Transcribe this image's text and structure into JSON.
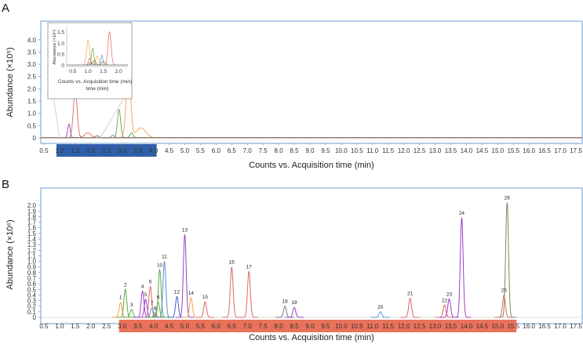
{
  "chart_data": [
    {
      "panel": "A",
      "type": "line",
      "xlabel": "Counts vs. Acquisition time (min)",
      "ylabel": "Abundance (×10⁵)",
      "xlim": [
        0.4,
        17.7
      ],
      "ylim": [
        -0.1,
        4.6
      ],
      "x_ticks": [
        "0.5",
        "1.0",
        "1.5",
        "2.0",
        "2.5",
        "3.0",
        "3.5",
        "4.0",
        "4.5",
        "5.0",
        "5.5",
        "6.0",
        "6.5",
        "7.0",
        "7.5",
        "8.0",
        "8.5",
        "9.0",
        "9.5",
        "10.0",
        "10.5",
        "11.0",
        "11.5",
        "12.0",
        "12.5",
        "13.0",
        "13.5",
        "14.0",
        "14.5",
        "15.0",
        "15.5",
        "16.0",
        "16.5",
        "17.0",
        "17.5"
      ],
      "y_ticks": [
        "0",
        "0.5",
        "1.0",
        "1.5",
        "2.0",
        "2.5",
        "3.0",
        "3.5",
        "4.0"
      ],
      "highlight_range": [
        0.9,
        4.1
      ],
      "highlight_color": "#2f5fa8",
      "series": [
        {
          "color": "#9b3fc9",
          "peaks": [
            [
              1.3,
              0.55,
              0.04
            ]
          ]
        },
        {
          "color": "#e06666",
          "peaks": [
            [
              1.5,
              1.95,
              0.06
            ],
            [
              1.9,
              0.2,
              0.1
            ]
          ]
        },
        {
          "color": "#5aa845",
          "peaks": [
            [
              2.9,
              1.15,
              0.05
            ],
            [
              3.3,
              0.2,
              0.05
            ]
          ]
        },
        {
          "color": "#f2a24a",
          "peaks": [
            [
              3.2,
              2.8,
              0.07
            ],
            [
              3.6,
              0.4,
              0.15
            ]
          ]
        },
        {
          "color": "#5b8fd6",
          "peaks": [
            [
              2.7,
              0.1,
              0.05
            ]
          ]
        },
        {
          "color": "#8c6d4f",
          "peaks": [
            [
              2.2,
              0.08,
              0.05
            ]
          ]
        }
      ],
      "inset": {
        "xlabel": "Counts vs. Acquisition time (min)",
        "ylabel": "Abundance (×10⁵)",
        "x_ticks": [
          "0.5",
          "1.0",
          "1.5",
          "2.0"
        ],
        "y_ticks": [
          "0",
          "0.5",
          "1.0",
          "1.5"
        ],
        "xlim": [
          0.3,
          2.3
        ],
        "ylim": [
          -0.05,
          1.75
        ],
        "series": [
          {
            "color": "#f2a24a",
            "peaks": [
              [
                1.0,
                1.1,
                0.05
              ],
              [
                1.3,
                0.4,
                0.05
              ]
            ]
          },
          {
            "color": "#e06666",
            "peaks": [
              [
                1.7,
                1.5,
                0.05
              ],
              [
                1.05,
                0.3,
                0.04
              ]
            ]
          },
          {
            "color": "#5b8fd6",
            "peaks": [
              [
                1.45,
                0.45,
                0.03
              ]
            ]
          },
          {
            "color": "#5aa845",
            "peaks": [
              [
                1.15,
                0.75,
                0.04
              ]
            ]
          },
          {
            "color": "#8c6d4f",
            "peaks": [
              [
                1.2,
                0.2,
                0.06
              ],
              [
                1.5,
                0.15,
                0.06
              ]
            ]
          },
          {
            "color": "#888888",
            "peaks": [
              [
                1.1,
                0.1,
                0.08
              ]
            ]
          }
        ]
      }
    },
    {
      "panel": "B",
      "type": "line",
      "xlabel": "Counts vs. Acquisition time (min)",
      "ylabel": "Abundance (×10⁶)",
      "xlim": [
        0.4,
        17.7
      ],
      "ylim": [
        -0.02,
        2.17
      ],
      "x_ticks": [
        "0.5",
        "1.0",
        "1.5",
        "2.0",
        "2.5",
        "3.0",
        "3.5",
        "4.0",
        "4.5",
        "5.0",
        "5.5",
        "6.0",
        "6.5",
        "7.0",
        "7.5",
        "8.0",
        "8.5",
        "9.0",
        "9.5",
        "10.0",
        "10.5",
        "11.0",
        "11.5",
        "12.0",
        "12.5",
        "13.0",
        "13.5",
        "14.0",
        "14.5",
        "15.0",
        "15.5",
        "16.0",
        "16.5",
        "17.0",
        "17.5"
      ],
      "y_ticks": [
        "0",
        "0.1",
        "0.2",
        "0.3",
        "0.4",
        "0.5",
        "0.6",
        "0.7",
        "0.8",
        "0.9",
        "1.0",
        "1.1",
        "1.2",
        "1.3",
        "1.4",
        "1.5",
        "1.6",
        "1.7",
        "1.8",
        "1.9",
        "2.0"
      ],
      "highlight_range": [
        2.9,
        15.6
      ],
      "highlight_color": "#e8725a",
      "peaks": [
        {
          "label": "1",
          "x": 2.95,
          "y": 0.27,
          "color": "#f2a24a"
        },
        {
          "label": "2",
          "x": 3.1,
          "y": 0.5,
          "color": "#5aa845"
        },
        {
          "label": "3",
          "x": 3.3,
          "y": 0.14,
          "color": "#5aa845"
        },
        {
          "label": "4",
          "x": 3.65,
          "y": 0.47,
          "color": "#9b3fc9"
        },
        {
          "label": "5",
          "x": 3.75,
          "y": 0.32,
          "color": "#9b3fc9"
        },
        {
          "label": "6",
          "x": 3.9,
          "y": 0.55,
          "color": "#e06666"
        },
        {
          "label": "7",
          "x": 3.95,
          "y": 0.17,
          "color": "#5b8fd6"
        },
        {
          "label": "8",
          "x": 4.05,
          "y": 0.08,
          "color": "#8c6d4f"
        },
        {
          "label": "9",
          "x": 4.15,
          "y": 0.27,
          "color": "#5aa845"
        },
        {
          "label": "10",
          "x": 4.2,
          "y": 0.85,
          "color": "#5aa845"
        },
        {
          "label": "11",
          "x": 4.35,
          "y": 1.0,
          "color": "#5b8fd6"
        },
        {
          "label": "12",
          "x": 4.75,
          "y": 0.37,
          "color": "#3f5fc9"
        },
        {
          "label": "13",
          "x": 5.0,
          "y": 1.48,
          "color": "#9b3fc9"
        },
        {
          "label": "14",
          "x": 5.2,
          "y": 0.35,
          "color": "#f2a24a"
        },
        {
          "label": "15",
          "x": 5.65,
          "y": 0.28,
          "color": "#e06666"
        },
        {
          "label": "16",
          "x": 6.5,
          "y": 0.9,
          "color": "#e06666"
        },
        {
          "label": "17",
          "x": 7.05,
          "y": 0.82,
          "color": "#e06666"
        },
        {
          "label": "18",
          "x": 8.2,
          "y": 0.2,
          "color": "#777777"
        },
        {
          "label": "19",
          "x": 8.5,
          "y": 0.18,
          "color": "#9b3fc9"
        },
        {
          "label": "20",
          "x": 11.25,
          "y": 0.1,
          "color": "#5b8fd6"
        },
        {
          "label": "21",
          "x": 12.2,
          "y": 0.34,
          "color": "#e06666"
        },
        {
          "label": "22",
          "x": 13.3,
          "y": 0.22,
          "color": "#e06666"
        },
        {
          "label": "23",
          "x": 13.45,
          "y": 0.33,
          "color": "#9b3fc9"
        },
        {
          "label": "24",
          "x": 13.85,
          "y": 1.78,
          "color": "#9b3fc9"
        },
        {
          "label": "25",
          "x": 15.2,
          "y": 0.4,
          "color": "#e06666"
        },
        {
          "label": "26",
          "x": 15.3,
          "y": 2.05,
          "color": "#7b8a5a"
        }
      ]
    }
  ],
  "labels": {
    "panel_a": "A",
    "panel_b": "B"
  }
}
